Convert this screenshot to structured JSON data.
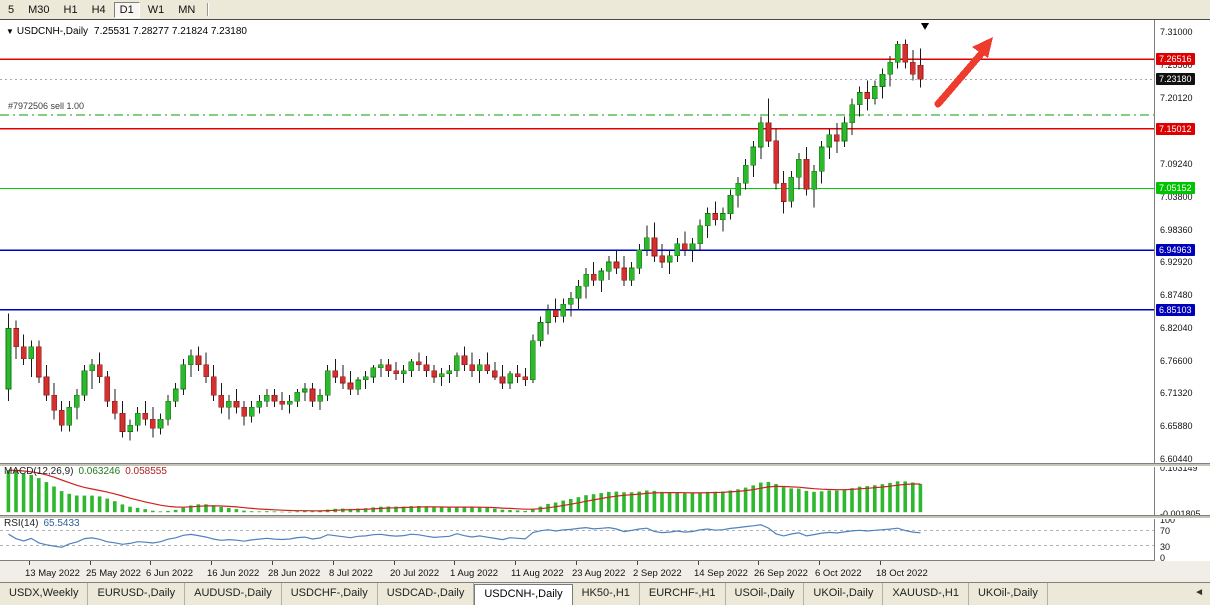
{
  "toolbar": {
    "timeframes": [
      {
        "label": "5",
        "active": false
      },
      {
        "label": "M30",
        "active": false
      },
      {
        "label": "H1",
        "active": false
      },
      {
        "label": "H4",
        "active": false
      },
      {
        "label": "D1",
        "active": true
      },
      {
        "label": "W1",
        "active": false
      },
      {
        "label": "MN",
        "active": false
      }
    ]
  },
  "chart": {
    "title_symbol": "USDCNH-,Daily",
    "title_ohlc": "7.25531 7.28277 7.21824 7.23180"
  },
  "chart_data": {
    "type": "candlestick",
    "symbol": "USDCNH",
    "timeframe": "Daily",
    "ohlc_current": {
      "open": 7.25531,
      "high": 7.28277,
      "low": 7.21824,
      "close": 7.2318
    },
    "price_axis": {
      "min": 6.6044,
      "max": 7.31,
      "ticks": [
        "7.31000",
        "7.25560",
        "7.20120",
        "7.14680",
        "7.09240",
        "7.03800",
        "6.98360",
        "6.92920",
        "6.87480",
        "6.82040",
        "6.76600",
        "6.71320",
        "6.65880",
        "6.60440"
      ]
    },
    "price_badges": [
      {
        "value": "7.26516",
        "color": "#dd0000"
      },
      {
        "value": "7.23180",
        "color": "#111111"
      },
      {
        "value": "7.15012",
        "color": "#dd0000"
      },
      {
        "value": "7.05152",
        "color": "#00c400"
      },
      {
        "value": "6.94963",
        "color": "#0000bb"
      },
      {
        "value": "6.85103",
        "color": "#0000bb"
      }
    ],
    "hlines": [
      {
        "price": 7.26516,
        "color": "#e00000",
        "style": "solid"
      },
      {
        "price": 7.15012,
        "color": "#e00000",
        "style": "solid"
      },
      {
        "price": 7.05152,
        "color": "#00d000",
        "style": "solid"
      },
      {
        "price": 6.94963,
        "color": "#0000c8",
        "style": "solid"
      },
      {
        "price": 6.85103,
        "color": "#0000c8",
        "style": "solid"
      }
    ],
    "bid_line": {
      "price": 7.2318,
      "color": "#a8a8a8",
      "style": "dotted"
    },
    "order_line": {
      "price": 7.1732,
      "label": "#7972506 sell 1.00",
      "color": "#00a000",
      "style": "dashdot"
    },
    "colors": {
      "up": "#2eb82e",
      "up_border": "#0f7a0f",
      "down": "#d43030",
      "down_border": "#8c1a1a",
      "wick": "#1a1a1a"
    },
    "arrow_object": {
      "color": "#ee3b2e"
    },
    "candles": [
      [
        6.72,
        6.845,
        6.7,
        6.82
      ],
      [
        6.82,
        6.833,
        6.77,
        6.79
      ],
      [
        6.79,
        6.81,
        6.76,
        6.77
      ],
      [
        6.77,
        6.8,
        6.74,
        6.79
      ],
      [
        6.79,
        6.8,
        6.73,
        6.74
      ],
      [
        6.74,
        6.76,
        6.7,
        6.71
      ],
      [
        6.71,
        6.73,
        6.67,
        6.685
      ],
      [
        6.685,
        6.7,
        6.65,
        6.66
      ],
      [
        6.66,
        6.7,
        6.65,
        6.69
      ],
      [
        6.69,
        6.72,
        6.67,
        6.71
      ],
      [
        6.71,
        6.76,
        6.7,
        6.75
      ],
      [
        6.75,
        6.77,
        6.72,
        6.76
      ],
      [
        6.76,
        6.78,
        6.73,
        6.74
      ],
      [
        6.74,
        6.75,
        6.69,
        6.7
      ],
      [
        6.7,
        6.72,
        6.67,
        6.68
      ],
      [
        6.68,
        6.7,
        6.64,
        6.65
      ],
      [
        6.65,
        6.67,
        6.635,
        6.66
      ],
      [
        6.66,
        6.69,
        6.65,
        6.68
      ],
      [
        6.68,
        6.7,
        6.66,
        6.67
      ],
      [
        6.67,
        6.69,
        6.64,
        6.655
      ],
      [
        6.655,
        6.68,
        6.645,
        6.67
      ],
      [
        6.67,
        6.71,
        6.66,
        6.7
      ],
      [
        6.7,
        6.73,
        6.69,
        6.72
      ],
      [
        6.72,
        6.77,
        6.71,
        6.76
      ],
      [
        6.76,
        6.785,
        6.74,
        6.775
      ],
      [
        6.775,
        6.79,
        6.75,
        6.76
      ],
      [
        6.76,
        6.78,
        6.73,
        6.74
      ],
      [
        6.74,
        6.76,
        6.7,
        6.71
      ],
      [
        6.71,
        6.73,
        6.68,
        6.69
      ],
      [
        6.69,
        6.71,
        6.67,
        6.7
      ],
      [
        6.7,
        6.72,
        6.68,
        6.69
      ],
      [
        6.69,
        6.7,
        6.66,
        6.675
      ],
      [
        6.675,
        6.7,
        6.665,
        6.69
      ],
      [
        6.69,
        6.71,
        6.68,
        6.7
      ],
      [
        6.7,
        6.72,
        6.69,
        6.71
      ],
      [
        6.71,
        6.72,
        6.69,
        6.7
      ],
      [
        6.7,
        6.715,
        6.685,
        6.695
      ],
      [
        6.695,
        6.71,
        6.68,
        6.7
      ],
      [
        6.7,
        6.72,
        6.69,
        6.715
      ],
      [
        6.715,
        6.73,
        6.7,
        6.72
      ],
      [
        6.72,
        6.73,
        6.69,
        6.7
      ],
      [
        6.7,
        6.72,
        6.685,
        6.71
      ],
      [
        6.71,
        6.76,
        6.7,
        6.75
      ],
      [
        6.75,
        6.77,
        6.73,
        6.74
      ],
      [
        6.74,
        6.76,
        6.72,
        6.73
      ],
      [
        6.73,
        6.75,
        6.71,
        6.72
      ],
      [
        6.72,
        6.74,
        6.71,
        6.735
      ],
      [
        6.735,
        6.75,
        6.72,
        6.74
      ],
      [
        6.74,
        6.76,
        6.73,
        6.755
      ],
      [
        6.755,
        6.77,
        6.74,
        6.76
      ],
      [
        6.76,
        6.77,
        6.74,
        6.75
      ],
      [
        6.75,
        6.765,
        6.735,
        6.745
      ],
      [
        6.745,
        6.76,
        6.73,
        6.75
      ],
      [
        6.75,
        6.77,
        6.74,
        6.765
      ],
      [
        6.765,
        6.78,
        6.75,
        6.76
      ],
      [
        6.76,
        6.775,
        6.74,
        6.75
      ],
      [
        6.75,
        6.76,
        6.73,
        6.74
      ],
      [
        6.74,
        6.755,
        6.725,
        6.745
      ],
      [
        6.745,
        6.76,
        6.73,
        6.75
      ],
      [
        6.75,
        6.78,
        6.74,
        6.775
      ],
      [
        6.775,
        6.79,
        6.75,
        6.76
      ],
      [
        6.76,
        6.78,
        6.74,
        6.75
      ],
      [
        6.75,
        6.77,
        6.73,
        6.76
      ],
      [
        6.76,
        6.78,
        6.745,
        6.75
      ],
      [
        6.75,
        6.765,
        6.735,
        6.74
      ],
      [
        6.74,
        6.76,
        6.72,
        6.73
      ],
      [
        6.73,
        6.75,
        6.72,
        6.745
      ],
      [
        6.745,
        6.76,
        6.73,
        6.74
      ],
      [
        6.74,
        6.755,
        6.725,
        6.735
      ],
      [
        6.735,
        6.81,
        6.73,
        6.8
      ],
      [
        6.8,
        6.84,
        6.79,
        6.83
      ],
      [
        6.83,
        6.86,
        6.81,
        6.85
      ],
      [
        6.85,
        6.87,
        6.83,
        6.84
      ],
      [
        6.84,
        6.87,
        6.83,
        6.86
      ],
      [
        6.86,
        6.88,
        6.84,
        6.87
      ],
      [
        6.87,
        6.9,
        6.85,
        6.89
      ],
      [
        6.89,
        6.92,
        6.87,
        6.91
      ],
      [
        6.91,
        6.93,
        6.89,
        6.9
      ],
      [
        6.9,
        6.92,
        6.88,
        6.915
      ],
      [
        6.915,
        6.94,
        6.9,
        6.93
      ],
      [
        6.93,
        6.95,
        6.91,
        6.92
      ],
      [
        6.92,
        6.94,
        6.89,
        6.9
      ],
      [
        6.9,
        6.93,
        6.89,
        6.92
      ],
      [
        6.92,
        6.96,
        6.91,
        6.95
      ],
      [
        6.95,
        6.99,
        6.94,
        6.97
      ],
      [
        6.97,
        6.995,
        6.93,
        6.94
      ],
      [
        6.94,
        6.96,
        6.92,
        6.93
      ],
      [
        6.93,
        6.95,
        6.91,
        6.94
      ],
      [
        6.94,
        6.97,
        6.93,
        6.96
      ],
      [
        6.96,
        6.98,
        6.94,
        6.95
      ],
      [
        6.95,
        6.97,
        6.93,
        6.96
      ],
      [
        6.96,
        7.0,
        6.95,
        6.99
      ],
      [
        6.99,
        7.02,
        6.97,
        7.01
      ],
      [
        7.01,
        7.03,
        6.99,
        7.0
      ],
      [
        7.0,
        7.02,
        6.98,
        7.01
      ],
      [
        7.01,
        7.05,
        7.0,
        7.04
      ],
      [
        7.04,
        7.07,
        7.02,
        7.06
      ],
      [
        7.06,
        7.1,
        7.05,
        7.09
      ],
      [
        7.09,
        7.13,
        7.07,
        7.12
      ],
      [
        7.12,
        7.17,
        7.1,
        7.16
      ],
      [
        7.16,
        7.2,
        7.12,
        7.13
      ],
      [
        7.13,
        7.15,
        7.05,
        7.06
      ],
      [
        7.06,
        7.08,
        7.01,
        7.03
      ],
      [
        7.03,
        7.08,
        7.02,
        7.07
      ],
      [
        7.07,
        7.11,
        7.05,
        7.1
      ],
      [
        7.1,
        7.12,
        7.04,
        7.05
      ],
      [
        7.05,
        7.09,
        7.02,
        7.08
      ],
      [
        7.08,
        7.13,
        7.06,
        7.12
      ],
      [
        7.12,
        7.15,
        7.1,
        7.14
      ],
      [
        7.14,
        7.16,
        7.11,
        7.13
      ],
      [
        7.13,
        7.17,
        7.12,
        7.16
      ],
      [
        7.16,
        7.2,
        7.14,
        7.19
      ],
      [
        7.19,
        7.22,
        7.17,
        7.21
      ],
      [
        7.21,
        7.23,
        7.18,
        7.2
      ],
      [
        7.2,
        7.23,
        7.19,
        7.22
      ],
      [
        7.22,
        7.25,
        7.2,
        7.24
      ],
      [
        7.24,
        7.27,
        7.22,
        7.26
      ],
      [
        7.26,
        7.295,
        7.25,
        7.29
      ],
      [
        7.29,
        7.298,
        7.25,
        7.26
      ],
      [
        7.26,
        7.28,
        7.23,
        7.24
      ],
      [
        7.25531,
        7.28277,
        7.21824,
        7.2318
      ]
    ],
    "date_ticks": [
      {
        "index": 3,
        "label": "13 May 2022"
      },
      {
        "index": 11,
        "label": "25 May 2022"
      },
      {
        "index": 19,
        "label": "6 Jun 2022"
      },
      {
        "index": 27,
        "label": "16 Jun 2022"
      },
      {
        "index": 35,
        "label": "28 Jun 2022"
      },
      {
        "index": 43,
        "label": "8 Jul 2022"
      },
      {
        "index": 51,
        "label": "20 Jul 2022"
      },
      {
        "index": 59,
        "label": "1 Aug 2022"
      },
      {
        "index": 67,
        "label": "11 Aug 2022"
      },
      {
        "index": 75,
        "label": "23 Aug 2022"
      },
      {
        "index": 83,
        "label": "2 Sep 2022"
      },
      {
        "index": 91,
        "label": "14 Sep 2022"
      },
      {
        "index": 99,
        "label": "26 Sep 2022"
      },
      {
        "index": 107,
        "label": "6 Oct 2022"
      },
      {
        "index": 115,
        "label": "18 Oct 2022"
      }
    ],
    "indicators": {
      "macd": {
        "label": "MACD(12,26,9)",
        "value": "0.063246",
        "signal_value": "0.058555",
        "axis_max": "0.103149",
        "axis_min": "-0.001805",
        "histogram_color": "#2eb82e",
        "signal_color": "#d02020"
      },
      "rsi": {
        "label": "RSI(14)",
        "value": "65.5433",
        "axis_labels": [
          "100",
          "70",
          "30",
          "0"
        ],
        "levels": [
          70,
          30
        ],
        "line_color": "#4f81bd"
      }
    }
  },
  "tabs": [
    {
      "label": "USDX,Weekly",
      "active": false
    },
    {
      "label": "EURUSD-,Daily",
      "active": false
    },
    {
      "label": "AUDUSD-,Daily",
      "active": false
    },
    {
      "label": "USDCHF-,Daily",
      "active": false
    },
    {
      "label": "USDCAD-,Daily",
      "active": false
    },
    {
      "label": "USDCNH-,Daily",
      "active": true
    },
    {
      "label": "HK50-,H1",
      "active": false
    },
    {
      "label": "EURCHF-,H1",
      "active": false
    },
    {
      "label": "USOil-,Daily",
      "active": false
    },
    {
      "label": "UKOil-,Daily",
      "active": false
    },
    {
      "label": "XAUUSD-,H1",
      "active": false
    },
    {
      "label": "UKOil-,Daily",
      "active": false
    }
  ],
  "tab_scroll_icon": "◄"
}
